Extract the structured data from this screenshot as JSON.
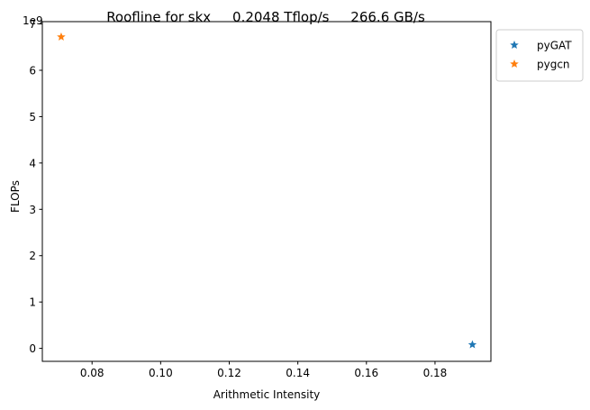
{
  "chart_data": {
    "type": "scatter",
    "title": "Roofline for skx     0.2048 Tflop/s     266.6 GB/s",
    "xlabel": "Arithmetic Intensity",
    "ylabel": "FLOPs",
    "y_offset_label": "1e9",
    "xlim": [
      0.0655,
      0.1963
    ],
    "ylim": [
      -0.28,
      7.05
    ],
    "xticks": [
      0.08,
      0.1,
      0.12,
      0.14,
      0.16,
      0.18
    ],
    "xtick_labels": [
      "0.08",
      "0.10",
      "0.12",
      "0.14",
      "0.16",
      "0.18"
    ],
    "yticks": [
      0,
      1,
      2,
      3,
      4,
      5,
      6,
      7
    ],
    "ytick_labels": [
      "0",
      "1",
      "2",
      "3",
      "4",
      "5",
      "6",
      "7"
    ],
    "grid": false,
    "legend": "outside-top-right",
    "marker": "star",
    "series": [
      {
        "name": "pyGAT",
        "color": "#1f77b4",
        "points": [
          {
            "x": 0.1909,
            "y": 0.08
          }
        ]
      },
      {
        "name": "pygcn",
        "color": "#ff7f0e",
        "points": [
          {
            "x": 0.071,
            "y": 6.72
          }
        ]
      }
    ]
  }
}
